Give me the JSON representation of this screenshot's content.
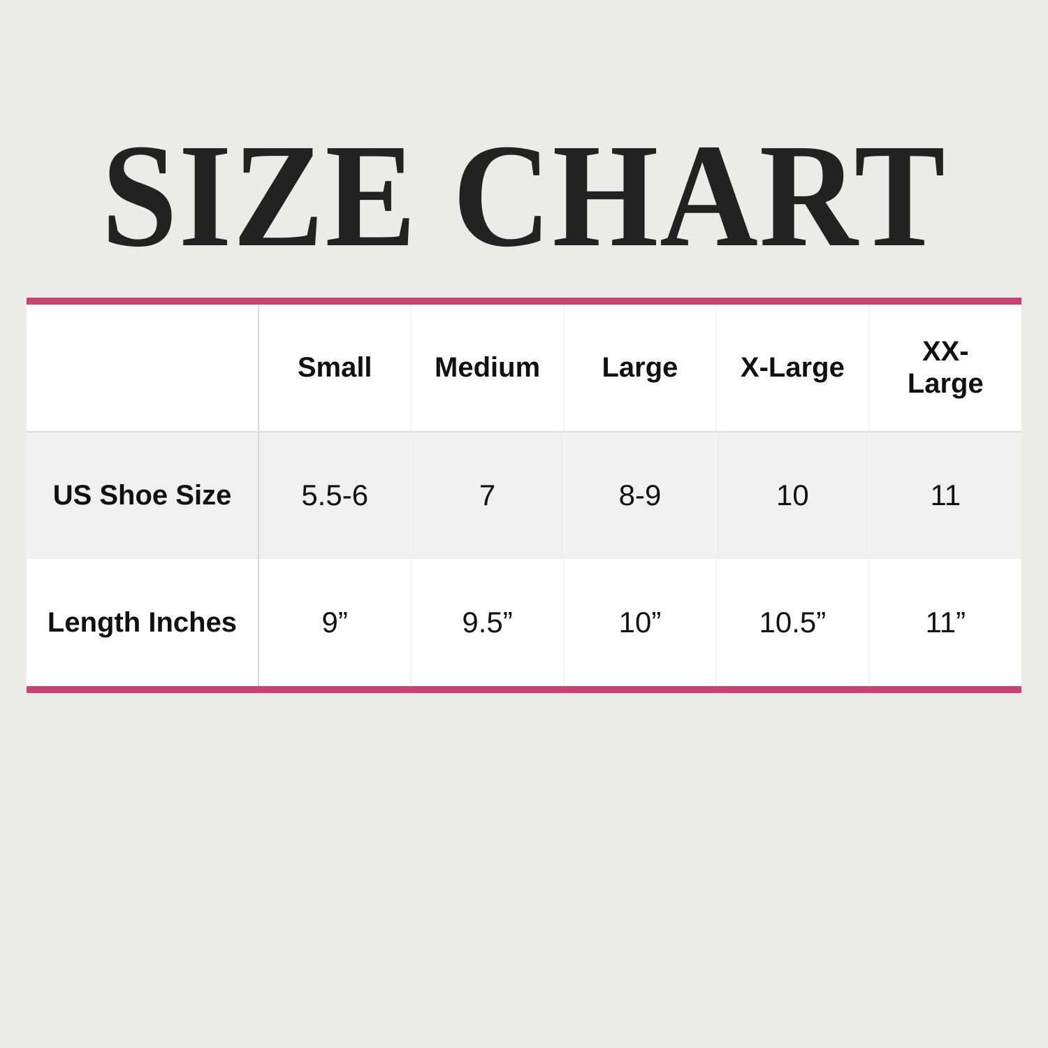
{
  "title": "SIZE CHART",
  "colors": {
    "accent": "#c94372",
    "background": "#ebebe9",
    "alt_row": "#f0f0f0"
  },
  "table": {
    "header": [
      "",
      "Small",
      "Medium",
      "Large",
      "X-Large",
      "XX-Large"
    ],
    "rows": [
      {
        "label": "US Shoe Size",
        "values": [
          "5.5-6",
          "7",
          "8-9",
          "10",
          "11"
        ]
      },
      {
        "label": "Length Inches",
        "values": [
          "9”",
          "9.5”",
          "10”",
          "10.5”",
          "11”"
        ]
      }
    ]
  }
}
